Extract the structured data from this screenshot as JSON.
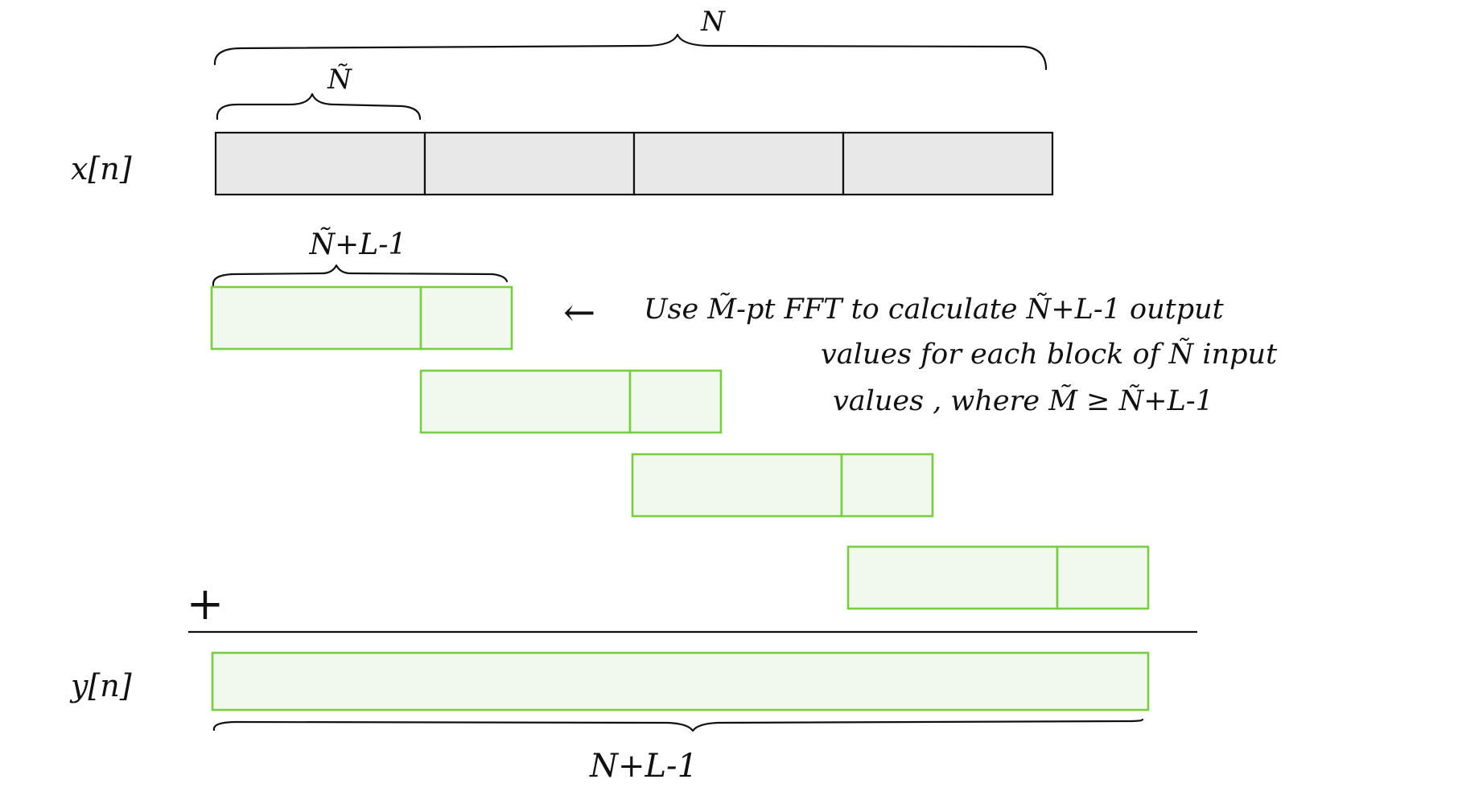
{
  "signals": {
    "input_label": "x[n]",
    "output_label": "y[n]"
  },
  "braces": {
    "total_length": "N",
    "block_length": "Ñ",
    "output_block_length": "Ñ+L-1",
    "output_total_length": "N+L-1"
  },
  "annotation": {
    "arrow": "←",
    "line1": "Use M̃-pt FFT to calculate Ñ+L-1 output",
    "line2": "values for each block of Ñ input",
    "line3": "values , where M̃ ≥ Ñ+L-1"
  },
  "sum_symbol": "+",
  "structure": {
    "input_block_count": 4,
    "output_block_count": 4
  },
  "colors": {
    "input_fill": "#e8e8e8",
    "output_fill": "#f1f8ec",
    "output_stroke": "#7acc44",
    "ink": "#111111"
  }
}
